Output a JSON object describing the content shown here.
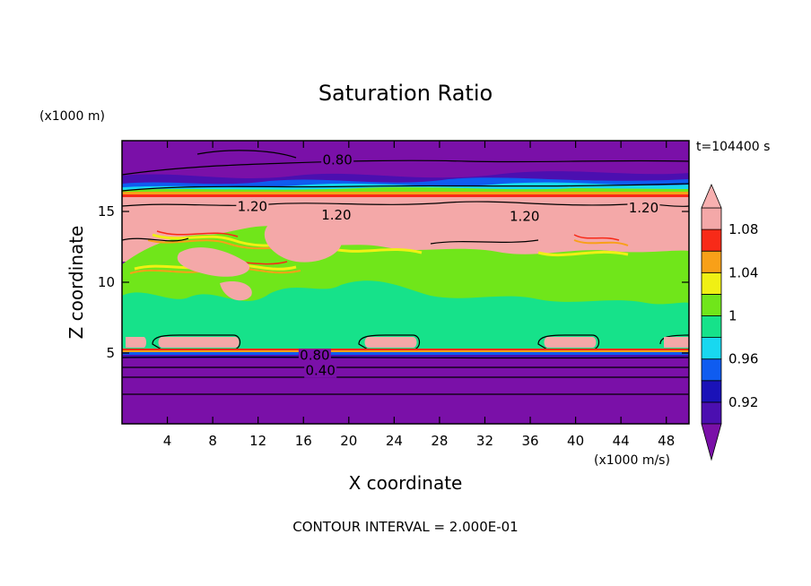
{
  "chart_data": {
    "type": "heatmap",
    "title": "Saturation Ratio",
    "xlabel": "X coordinate",
    "ylabel": "Z coordinate",
    "x_unit": "(x1000 m/s)",
    "y_unit": "(x1000 m)",
    "time_label": "t=104400 s",
    "footer": "CONTOUR INTERVAL = 2.000E-01",
    "xlim": [
      0,
      50
    ],
    "ylim": [
      0,
      20
    ],
    "x_ticks": [
      4,
      8,
      12,
      16,
      20,
      24,
      28,
      32,
      36,
      40,
      44,
      48
    ],
    "y_ticks": [
      5,
      10,
      15
    ],
    "colorbar": {
      "levels": [
        0.9,
        0.92,
        0.94,
        0.96,
        0.98,
        1.0,
        1.02,
        1.04,
        1.06,
        1.08,
        1.1
      ],
      "tick_labels": [
        "0.92",
        "0.96",
        "1",
        "1.04",
        "1.08"
      ],
      "tick_values": [
        0.92,
        0.96,
        1.0,
        1.04,
        1.08
      ],
      "colors": [
        "#7a10a8",
        "#4b0fb0",
        "#1a12b8",
        "#0f5cf0",
        "#18d8f0",
        "#16e28a",
        "#70e61a",
        "#f0f014",
        "#f8a018",
        "#f82a18",
        "#f4a8a8",
        "#f8b0b0"
      ]
    },
    "contour_labels": [
      {
        "text": "0.80",
        "x": 19.0,
        "z": 18.4
      },
      {
        "text": "1.20",
        "x": 11.5,
        "z": 15.1
      },
      {
        "text": "1.20",
        "x": 18.9,
        "z": 14.5
      },
      {
        "text": "1.20",
        "x": 35.5,
        "z": 14.4
      },
      {
        "text": "1.20",
        "x": 46.0,
        "z": 15.0
      },
      {
        "text": "0.80",
        "x": 17.0,
        "z": 4.6
      },
      {
        "text": "0.40",
        "x": 17.5,
        "z": 3.5
      }
    ]
  }
}
